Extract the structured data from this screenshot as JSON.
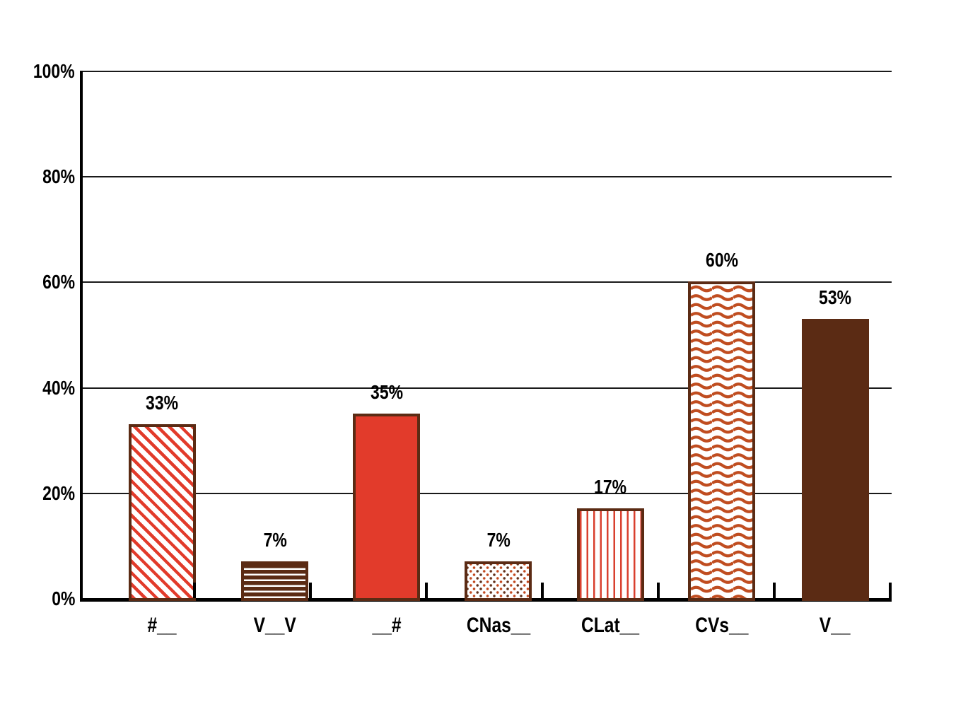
{
  "chart_data": {
    "type": "bar",
    "title": "",
    "xlabel": "",
    "ylabel": "",
    "categories": [
      "#__",
      "V__V",
      "__#",
      "CNas__",
      "CLat__",
      "CVs__",
      "V__"
    ],
    "values": [
      33,
      7,
      35,
      7,
      17,
      60,
      53
    ],
    "value_labels": [
      "33%",
      "7%",
      "35%",
      "7%",
      "17%",
      "60%",
      "53%"
    ],
    "bar_patterns": [
      "diagonal-stripes",
      "horizontal-stripes",
      "solid-red",
      "dots",
      "vertical-stripes",
      "waves",
      "solid-brown"
    ],
    "ylim": [
      0,
      100
    ],
    "y_tick_values": [
      0,
      20,
      40,
      60,
      80,
      100
    ],
    "y_tick_labels": [
      "0%",
      "20%",
      "40%",
      "60%",
      "80%",
      "100%"
    ],
    "grid": true,
    "legend": false
  },
  "colors": {
    "red": "#E23B2B",
    "stripe_red": "#D9402F",
    "dark_brown": "#5B2B14",
    "wave_orange": "#C04D20",
    "dot_orange": "#C2491F",
    "dot_brown": "#63301A",
    "axis": "#000000",
    "gridline": "#1A1A1A",
    "text": "#000000",
    "background": "#FFFFFF"
  }
}
